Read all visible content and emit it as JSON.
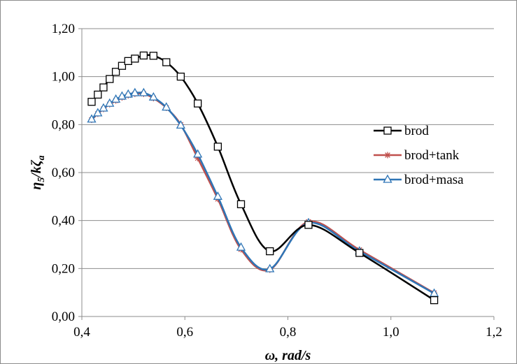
{
  "chart_data": {
    "type": "line",
    "xlabel": "ω, rad/s",
    "ylabel_main": "η",
    "ylabel_sub5": "5",
    "ylabel_mid": "/kζ",
    "ylabel_suba": "a",
    "xlim": [
      0.4,
      1.2
    ],
    "ylim": [
      0,
      1.2
    ],
    "x_ticks": [
      0.4,
      0.6,
      0.8,
      1.0,
      1.2
    ],
    "x_tick_labels": [
      "0,4",
      "0,6",
      "0,8",
      "1,0",
      "1,2"
    ],
    "y_ticks": [
      0,
      0.2,
      0.4,
      0.6,
      0.8,
      1.0,
      1.2
    ],
    "y_tick_labels": [
      "0,00",
      "0,20",
      "0,40",
      "0,60",
      "0,80",
      "1,00",
      "1,20"
    ],
    "grid": "horizontal",
    "legend_position": "right",
    "series": [
      {
        "name": "brod",
        "color": "#000000",
        "marker": "square",
        "x": [
          0.419,
          0.431,
          0.442,
          0.454,
          0.466,
          0.478,
          0.49,
          0.503,
          0.52,
          0.539,
          0.564,
          0.592,
          0.625,
          0.664,
          0.709,
          0.765,
          0.84,
          0.939,
          1.084
        ],
        "y": [
          0.895,
          0.925,
          0.955,
          0.99,
          1.02,
          1.045,
          1.065,
          1.075,
          1.088,
          1.087,
          1.06,
          1.0,
          0.888,
          0.708,
          0.468,
          0.272,
          0.382,
          0.265,
          0.068
        ]
      },
      {
        "name": "brod+tank",
        "color": "#c0504d",
        "marker": "star",
        "x": [
          0.419,
          0.431,
          0.442,
          0.454,
          0.466,
          0.478,
          0.49,
          0.503,
          0.52,
          0.539,
          0.564,
          0.592,
          0.625,
          0.664,
          0.709,
          0.765,
          0.84,
          0.939,
          1.084
        ],
        "y": [
          0.82,
          0.845,
          0.865,
          0.885,
          0.9,
          0.913,
          0.922,
          0.928,
          0.928,
          0.91,
          0.87,
          0.8,
          0.66,
          0.49,
          0.28,
          0.195,
          0.395,
          0.278,
          0.098
        ]
      },
      {
        "name": "brod+masa",
        "color": "#2e75b6",
        "marker": "triangle",
        "x": [
          0.419,
          0.431,
          0.442,
          0.454,
          0.466,
          0.478,
          0.49,
          0.503,
          0.52,
          0.539,
          0.564,
          0.592,
          0.625,
          0.664,
          0.709,
          0.765,
          0.84,
          0.939,
          1.084
        ],
        "y": [
          0.822,
          0.848,
          0.868,
          0.888,
          0.905,
          0.918,
          0.926,
          0.932,
          0.932,
          0.914,
          0.872,
          0.797,
          0.676,
          0.5,
          0.288,
          0.198,
          0.39,
          0.272,
          0.096
        ]
      }
    ]
  }
}
